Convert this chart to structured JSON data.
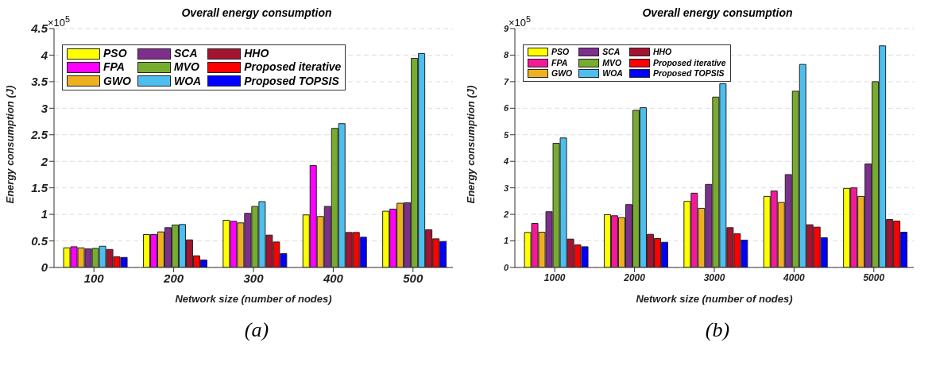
{
  "chart_data": [
    {
      "type": "bar",
      "title": "Overall energy consumption",
      "xlabel": "Network size (number of nodes)",
      "ylabel": "Energy consumption (J)",
      "categories": [
        "100",
        "200",
        "300",
        "400",
        "500"
      ],
      "ylim": [
        0,
        4.5
      ],
      "yticks": [
        0,
        0.5,
        1,
        1.5,
        2,
        2.5,
        3,
        3.5,
        4,
        4.5
      ],
      "grid": "y",
      "legend": "top left",
      "annotations": [
        "×10$^{5}$",
        "(a)"
      ],
      "series": [
        {
          "name": "PSO",
          "color": "#ffff00",
          "values": [
            0.37,
            0.62,
            0.89,
            0.99,
            1.06
          ]
        },
        {
          "name": "FPA",
          "color": "#ff00ff",
          "values": [
            0.39,
            0.62,
            0.87,
            1.92,
            1.1
          ]
        },
        {
          "name": "GWO",
          "color": "#edb120",
          "values": [
            0.37,
            0.67,
            0.84,
            0.96,
            1.21
          ]
        },
        {
          "name": "SCA",
          "color": "#7e2f8e",
          "values": [
            0.35,
            0.75,
            1.02,
            1.15,
            1.22
          ]
        },
        {
          "name": "MVO",
          "color": "#77ac30",
          "values": [
            0.36,
            0.8,
            1.15,
            2.62,
            3.94
          ]
        },
        {
          "name": "WOA",
          "color": "#4dbeee",
          "values": [
            0.4,
            0.81,
            1.24,
            2.71,
            4.03
          ]
        },
        {
          "name": "HHO",
          "color": "#a2142f",
          "values": [
            0.34,
            0.52,
            0.61,
            0.66,
            0.71
          ]
        },
        {
          "name": "Proposed iterative",
          "color": "#ff0000",
          "values": [
            0.2,
            0.22,
            0.48,
            0.66,
            0.54
          ]
        },
        {
          "name": "Proposed TOPSIS",
          "color": "#0000ff",
          "values": [
            0.19,
            0.14,
            0.26,
            0.57,
            0.49
          ]
        }
      ]
    },
    {
      "type": "bar",
      "title": "Overall energy consumption",
      "xlabel": "Network size (number of nodes)",
      "ylabel": "Energy consumption (J)",
      "categories": [
        "1000",
        "2000",
        "3000",
        "4000",
        "5000"
      ],
      "ylim": [
        0,
        9
      ],
      "yticks": [
        0,
        1,
        2,
        3,
        4,
        5,
        6,
        7,
        8,
        9
      ],
      "grid": "y",
      "legend": "top left",
      "annotations": [
        "×10$^{5}$",
        "(b)"
      ],
      "series": [
        {
          "name": "PSO",
          "color": "#ffff00",
          "values": [
            1.32,
            1.99,
            2.49,
            2.68,
            2.98
          ]
        },
        {
          "name": "FPA",
          "color": "#f5199a",
          "values": [
            1.66,
            1.95,
            2.8,
            2.88,
            3.0
          ]
        },
        {
          "name": "GWO",
          "color": "#edb120",
          "values": [
            1.33,
            1.88,
            2.23,
            2.45,
            2.68
          ]
        },
        {
          "name": "SCA",
          "color": "#7e2f8e",
          "values": [
            2.1,
            2.37,
            3.13,
            3.5,
            3.9
          ]
        },
        {
          "name": "MVO",
          "color": "#77ac30",
          "values": [
            4.68,
            5.92,
            6.42,
            6.64,
            7.0
          ]
        },
        {
          "name": "WOA",
          "color": "#4dbeee",
          "values": [
            4.88,
            6.02,
            6.92,
            7.65,
            8.35
          ]
        },
        {
          "name": "HHO",
          "color": "#a2142f",
          "values": [
            1.07,
            1.25,
            1.5,
            1.61,
            1.81
          ]
        },
        {
          "name": "Proposed iterative",
          "color": "#ff0000",
          "values": [
            0.85,
            1.09,
            1.27,
            1.52,
            1.75
          ]
        },
        {
          "name": "Proposed TOPSIS",
          "color": "#0000ff",
          "values": [
            0.78,
            0.95,
            1.03,
            1.12,
            1.33
          ]
        }
      ]
    }
  ]
}
